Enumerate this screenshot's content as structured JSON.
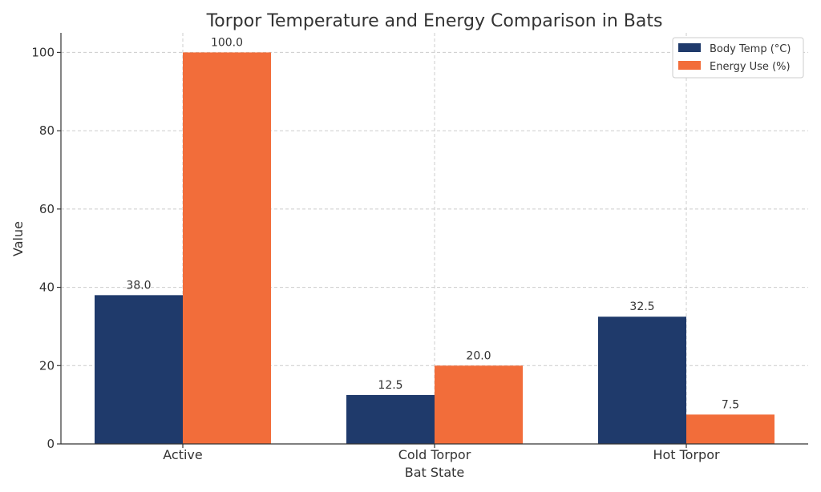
{
  "chart_data": {
    "type": "bar",
    "title": "Torpor Temperature and Energy Comparison in Bats",
    "xlabel": "Bat State",
    "ylabel": "Value",
    "categories": [
      "Active",
      "Cold Torpor",
      "Hot Torpor"
    ],
    "series": [
      {
        "name": "Body Temp (°C)",
        "values": [
          38.0,
          12.5,
          32.5
        ],
        "color": "#1f3a6b"
      },
      {
        "name": "Energy Use (%)",
        "values": [
          100.0,
          20.0,
          7.5
        ],
        "color": "#f26d3a"
      }
    ],
    "ylim": [
      0,
      105
    ],
    "yticks": [
      0,
      20,
      40,
      60,
      80,
      100
    ],
    "data_labels": [
      [
        "38.0",
        "12.5",
        "32.5"
      ],
      [
        "100.0",
        "20.0",
        "7.5"
      ]
    ],
    "grid": true,
    "legend": "top-right"
  }
}
